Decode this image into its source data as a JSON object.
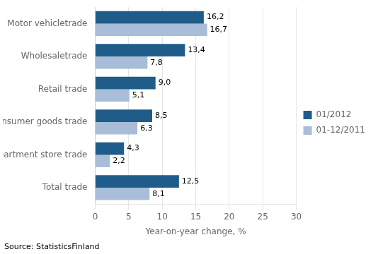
{
  "chart_data": {
    "type": "bar",
    "orientation": "horizontal",
    "categories": [
      "Motor vehicletrade",
      "Wholesaletrade",
      "Retail trade",
      "Daily consumer goods trade",
      "Department store trade",
      "Total trade"
    ],
    "series": [
      {
        "name": "01/2012",
        "color": "#1F5C8A",
        "values": [
          16.2,
          13.4,
          9.0,
          8.5,
          4.3,
          12.5
        ],
        "value_labels": [
          "16,2",
          "13,4",
          "9,0",
          "8,5",
          "4,3",
          "12,5"
        ]
      },
      {
        "name": "01-12/2011",
        "color": "#A8BDD8",
        "values": [
          16.7,
          7.8,
          5.1,
          6.3,
          2.2,
          8.1
        ],
        "value_labels": [
          "16,7",
          "7,8",
          "5,1",
          "6,3",
          "2,2",
          "8,1"
        ]
      }
    ],
    "xlabel": "Year-on-year change, %",
    "xlim": [
      0,
      30
    ],
    "xticks": [
      0,
      5,
      10,
      15,
      20,
      25,
      30
    ],
    "grid": true,
    "legend": "right",
    "data_labels": true,
    "annotations": [
      "Source: StatisticsFinland"
    ]
  }
}
